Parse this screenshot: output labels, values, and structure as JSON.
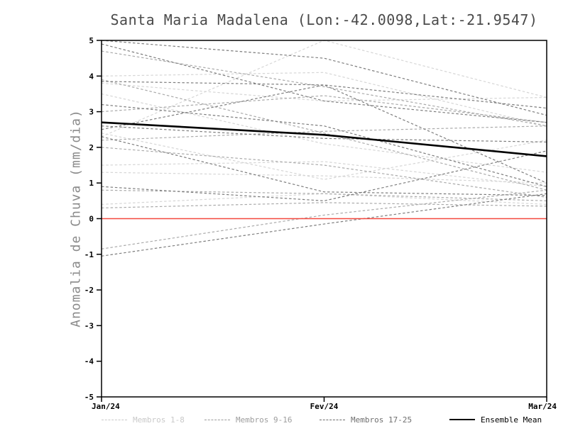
{
  "chart_data": {
    "type": "line",
    "title": "Santa Maria Madalena (Lon:-42.0098,Lat:-21.9547)",
    "ylabel": "Anomalia de Chuva (mm/dia)",
    "xlabel": "",
    "x_categories": [
      "Jan/24",
      "Fev/24",
      "Mar/24"
    ],
    "ylim": [
      -5,
      5
    ],
    "yticks": [
      5,
      4,
      3,
      2,
      1,
      0,
      -1,
      -2,
      -3,
      -4,
      -5
    ],
    "grid": false,
    "zero_line": {
      "y": 0,
      "color": "#f4483f"
    },
    "frame_color": "#000000",
    "groups": [
      {
        "name": "Membros 1-8",
        "color": "#d6d6d6",
        "members": [
          [
            4.0,
            4.1,
            2.6
          ],
          [
            3.8,
            3.3,
            3.4
          ],
          [
            2.3,
            5.0,
            3.4
          ],
          [
            1.5,
            1.6,
            0.9
          ],
          [
            1.3,
            1.2,
            1.0
          ],
          [
            0.4,
            0.7,
            0.4
          ],
          [
            2.4,
            1.1,
            2.2
          ],
          [
            3.5,
            2.1,
            1.3
          ]
        ]
      },
      {
        "name": "Membros 9-16",
        "color": "#aaaaaa",
        "members": [
          [
            4.7,
            3.7,
            2.6
          ],
          [
            3.9,
            2.4,
            0.8
          ],
          [
            2.2,
            2.45,
            2.6
          ],
          [
            0.8,
            0.7,
            0.5
          ],
          [
            -0.85,
            0.1,
            0.8
          ],
          [
            2.0,
            1.5,
            0.6
          ],
          [
            3.0,
            3.45,
            2.7
          ],
          [
            0.3,
            0.45,
            0.35
          ]
        ]
      },
      {
        "name": "Membros 17-25",
        "color": "#7d7d7d",
        "members": [
          [
            4.9,
            3.3,
            2.7
          ],
          [
            3.2,
            2.6,
            0.9
          ],
          [
            2.5,
            3.75,
            3.1
          ],
          [
            -1.05,
            -0.15,
            0.7
          ],
          [
            2.3,
            0.75,
            0.65
          ],
          [
            3.85,
            3.75,
            1.0
          ],
          [
            5.0,
            4.5,
            2.9
          ],
          [
            2.6,
            2.25,
            2.15
          ],
          [
            0.9,
            0.5,
            1.9
          ]
        ]
      }
    ],
    "ensemble_mean": {
      "name": "Ensemble Mean",
      "color": "#000000",
      "values": [
        2.7,
        2.35,
        1.75
      ]
    },
    "legend_position": "bottom"
  },
  "legend": {
    "items": [
      {
        "label": "Membros 1-8",
        "color": "#c9c9c9",
        "style": "dashed"
      },
      {
        "label": "Membros 9-16",
        "color": "#9d9d9d",
        "style": "dashed"
      },
      {
        "label": "Membros 17-25",
        "color": "#6f6f6f",
        "style": "dashed"
      },
      {
        "label": "Ensemble Mean",
        "color": "#000000",
        "style": "solid"
      }
    ]
  }
}
